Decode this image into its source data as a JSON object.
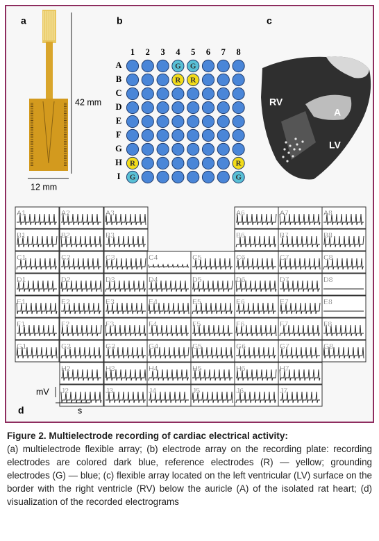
{
  "panel_a": {
    "label": "a",
    "length": "42 mm",
    "width": "12 mm"
  },
  "panel_b": {
    "label": "b",
    "columns": [
      "1",
      "2",
      "3",
      "4",
      "5",
      "6",
      "7",
      "8"
    ],
    "rows": [
      "A",
      "B",
      "C",
      "D",
      "E",
      "F",
      "G",
      "H",
      "I"
    ],
    "cells": [
      [
        null,
        null,
        null,
        "G",
        "G",
        null,
        null,
        null
      ],
      [
        null,
        null,
        null,
        "R",
        "R",
        null,
        null,
        null
      ],
      [
        null,
        null,
        null,
        null,
        null,
        null,
        null,
        null
      ],
      [
        null,
        null,
        null,
        null,
        null,
        null,
        null,
        null
      ],
      [
        null,
        null,
        null,
        null,
        null,
        null,
        null,
        null
      ],
      [
        null,
        null,
        null,
        null,
        null,
        null,
        null,
        null
      ],
      [
        null,
        null,
        null,
        null,
        null,
        null,
        null,
        null
      ],
      [
        "R",
        null,
        null,
        null,
        null,
        null,
        null,
        "R"
      ],
      [
        "G",
        null,
        null,
        null,
        null,
        null,
        null,
        "G"
      ]
    ]
  },
  "panel_c": {
    "label": "c",
    "rv": "RV",
    "a": "A",
    "lv": "LV"
  },
  "panel_d": {
    "label": "d",
    "y_unit": "mV",
    "x_unit": "s",
    "tiles": [
      [
        "A1",
        "A2",
        "A3",
        null,
        null,
        "A6",
        "A7",
        "A8"
      ],
      [
        "B1",
        "B2",
        "B3",
        null,
        null,
        "B6",
        "B7",
        "B8"
      ],
      [
        "C1",
        "C2",
        "C3",
        "C4",
        "C5",
        "C6",
        "C7",
        "C8"
      ],
      [
        "D1",
        "D2",
        "D3",
        "D4",
        "D5",
        "D6",
        "D7",
        "D8"
      ],
      [
        "E1",
        "E2",
        "E3",
        "E4",
        "E5",
        "E6",
        "E7",
        "E8"
      ],
      [
        "F1",
        "F2",
        "F3",
        "F4",
        "F5",
        "F6",
        "F7",
        "F8"
      ],
      [
        "G1",
        "G2",
        "G3",
        "G4",
        "G5",
        "G6",
        "G7",
        "G8"
      ],
      [
        null,
        "H2",
        "H3",
        "H4",
        "H5",
        "H6",
        "H7",
        null
      ],
      [
        null,
        "J2",
        "J3",
        "J4",
        "J5",
        "J6",
        "J7",
        null
      ]
    ]
  },
  "caption": {
    "title": "Figure 2. Multielectrode recording of cardiac electrical activity:",
    "body": "(a) multielectrode flexible array; (b) electrode array on the recording plate: recording electrodes are colored dark blue, reference electrodes (R) — yellow; grounding electrodes (G) — blue; (c) flexible array located on the left ventricular (LV) surface on the border with the right ventricle (RV) below the auricle (A) of the isolated rat heart; (d) visualization of the recorded electrograms"
  }
}
